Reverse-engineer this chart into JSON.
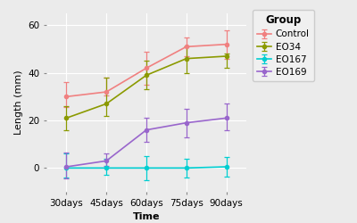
{
  "x_labels": [
    "30days",
    "45days",
    "60days",
    "75days",
    "90days"
  ],
  "x_values": [
    0,
    1,
    2,
    3,
    4
  ],
  "series": [
    {
      "name": "Control",
      "y": [
        30,
        32,
        42,
        51,
        52
      ],
      "yerr_low": [
        4.5,
        1.5,
        7,
        4,
        6
      ],
      "yerr_high": [
        6,
        6,
        7,
        4,
        6
      ],
      "color": "#F08080"
    },
    {
      "name": "EO34",
      "y": [
        21,
        27,
        39,
        46,
        47
      ],
      "yerr_low": [
        5,
        5,
        6,
        6,
        5
      ],
      "yerr_high": [
        5,
        11,
        6,
        5,
        1
      ],
      "color": "#8B9A00"
    },
    {
      "name": "EO167",
      "y": [
        0,
        0,
        0,
        0,
        0.5
      ],
      "yerr_low": [
        4,
        3,
        5,
        4,
        4
      ],
      "yerr_high": [
        6,
        4,
        5,
        4,
        4
      ],
      "color": "#00CED1"
    },
    {
      "name": "EO169",
      "y": [
        0.5,
        3,
        16,
        19,
        21
      ],
      "yerr_low": [
        5,
        2,
        5,
        6,
        5
      ],
      "yerr_high": [
        6,
        3,
        5,
        6,
        6
      ],
      "color": "#9966CC"
    }
  ],
  "xlabel": "Time",
  "ylabel": "Length (mm)",
  "ylim": [
    -10,
    65
  ],
  "yticks": [
    0,
    20,
    40,
    60
  ],
  "legend_title": "Group",
  "bg_color": "#EBEBEB",
  "panel_bg": "#EBEBEB",
  "grid_color": "#FFFFFF",
  "label_fontsize": 8,
  "tick_fontsize": 7.5,
  "legend_fontsize": 7.5,
  "legend_title_fontsize": 8.5
}
